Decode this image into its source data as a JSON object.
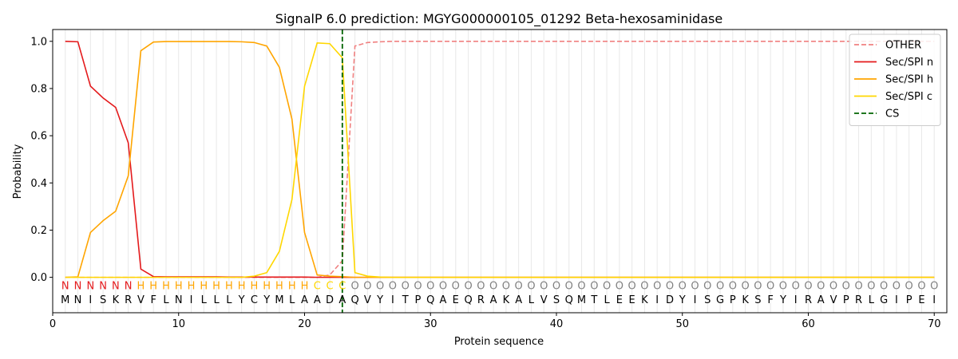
{
  "chart_data": {
    "type": "line",
    "title": "SignalP 6.0 prediction: MGYG000000105_01292 Beta-hexosaminidase",
    "xlabel": "Protein sequence",
    "ylabel": "Probability",
    "xlim": [
      0,
      71
    ],
    "ylim": [
      -0.15,
      1.05
    ],
    "x_ticks": [
      0,
      10,
      20,
      30,
      40,
      50,
      60,
      70
    ],
    "y_ticks": [
      0.0,
      0.2,
      0.4,
      0.6,
      0.8,
      1.0
    ],
    "x_tick_labels": [
      "0",
      "10",
      "20",
      "30",
      "40",
      "50",
      "60",
      "70"
    ],
    "y_tick_labels": [
      "0.0",
      "0.2",
      "0.4",
      "0.6",
      "0.8",
      "1.0"
    ],
    "grid": "vertical lines at each residue",
    "legend_position": "top-right",
    "sequence": "MNISKRVFLNILLLYCYMLAADAQVYITPQAEQRAKALVSQMTLEEKIDYISGPKSFYIRAVPRLGIPEI",
    "labels": "NNNNNNHHHHHHHHHHHHHHCCCOOOOOOOOOOOOOOOOOOOOOOOOOOOOOOOOOOOOOOOOOOOOOOO",
    "label_colors": {
      "N": "#e41a1c",
      "H": "#ffa500",
      "C": "#ffd700",
      "O": "#808080"
    },
    "cleavage_site": 23,
    "series": [
      {
        "name": "OTHER",
        "color": "#f08080",
        "dash": "dashed",
        "values": [
          0,
          0,
          0,
          0,
          0,
          0,
          0,
          0,
          0,
          0,
          0,
          0,
          0,
          0,
          0,
          0,
          0,
          0,
          0,
          0,
          0,
          0.01,
          0.07,
          0.98,
          0.995,
          0.998,
          1,
          1,
          1,
          1,
          1,
          1,
          1,
          1,
          1,
          1,
          1,
          1,
          1,
          1,
          1,
          1,
          1,
          1,
          1,
          1,
          1,
          1,
          1,
          1,
          1,
          1,
          1,
          1,
          1,
          1,
          1,
          1,
          1,
          1,
          1,
          1,
          1,
          1,
          1,
          1,
          1,
          1,
          1,
          1
        ]
      },
      {
        "name": "Sec/SPI n",
        "color": "#e41a1c",
        "dash": "solid",
        "values": [
          1.0,
          0.998,
          0.81,
          0.76,
          0.72,
          0.57,
          0.035,
          0.003,
          0.002,
          0.002,
          0.002,
          0.002,
          0.002,
          0.001,
          0.001,
          0.001,
          0.001,
          0.001,
          0.001,
          0.001,
          0,
          0,
          0,
          0,
          0,
          0,
          0,
          0,
          0,
          0,
          0,
          0,
          0,
          0,
          0,
          0,
          0,
          0,
          0,
          0,
          0,
          0,
          0,
          0,
          0,
          0,
          0,
          0,
          0,
          0,
          0,
          0,
          0,
          0,
          0,
          0,
          0,
          0,
          0,
          0,
          0,
          0,
          0,
          0,
          0,
          0,
          0,
          0,
          0,
          0
        ]
      },
      {
        "name": "Sec/SPI h",
        "color": "#ffa500",
        "dash": "solid",
        "values": [
          0,
          0.002,
          0.19,
          0.24,
          0.28,
          0.43,
          0.96,
          0.997,
          0.999,
          0.999,
          0.999,
          0.999,
          0.999,
          0.999,
          0.998,
          0.995,
          0.98,
          0.89,
          0.67,
          0.19,
          0.01,
          0.005,
          0.003,
          0,
          0,
          0,
          0,
          0,
          0,
          0,
          0,
          0,
          0,
          0,
          0,
          0,
          0,
          0,
          0,
          0,
          0,
          0,
          0,
          0,
          0,
          0,
          0,
          0,
          0,
          0,
          0,
          0,
          0,
          0,
          0,
          0,
          0,
          0,
          0,
          0,
          0,
          0,
          0,
          0,
          0,
          0,
          0,
          0,
          0,
          0
        ]
      },
      {
        "name": "Sec/SPI c",
        "color": "#ffd700",
        "dash": "solid",
        "values": [
          0,
          0,
          0,
          0,
          0,
          0,
          0,
          0,
          0,
          0,
          0,
          0,
          0,
          0,
          0,
          0.005,
          0.02,
          0.11,
          0.33,
          0.81,
          0.993,
          0.99,
          0.93,
          0.02,
          0.005,
          0.001,
          0,
          0,
          0,
          0,
          0,
          0,
          0,
          0,
          0,
          0,
          0,
          0,
          0,
          0,
          0,
          0,
          0,
          0,
          0,
          0,
          0,
          0,
          0,
          0,
          0,
          0,
          0,
          0,
          0,
          0,
          0,
          0,
          0,
          0,
          0,
          0,
          0,
          0,
          0,
          0,
          0,
          0,
          0,
          0
        ]
      },
      {
        "name": "CS",
        "color": "#006400",
        "dash": "dashed",
        "kind": "vline",
        "x": 23
      }
    ]
  }
}
